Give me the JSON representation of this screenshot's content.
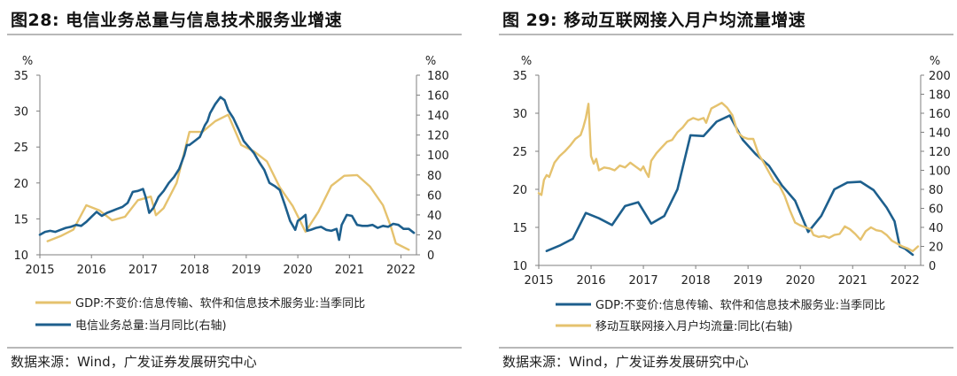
{
  "figures": [
    {
      "title": "图28:  电信业务总量与信息技术服务业增速",
      "source": "数据来源：Wind，广发证券发展研究中心"
    },
    {
      "title": "图 29:  移动互联网接入月户均流量增速",
      "source": "数据来源：Wind，广发证券发展研究中心"
    }
  ],
  "colors": {
    "gold": "#e5c26e",
    "blue": "#1d5f8d",
    "axis": "#7f7f7f"
  },
  "chart_data": [
    {
      "type": "line",
      "left_unit": "%",
      "right_unit": "%",
      "ylim": [
        10,
        35
      ],
      "yticks": [
        10,
        15,
        20,
        25,
        30,
        35
      ],
      "y2lim": [
        0,
        180
      ],
      "y2ticks": [
        0,
        20,
        40,
        60,
        80,
        100,
        120,
        140,
        160,
        180
      ],
      "xlim": [
        2015,
        2022.3
      ],
      "xticks": [
        "2015",
        "2016",
        "2017",
        "2018",
        "2019",
        "2020",
        "2021",
        "2022"
      ],
      "grid": false,
      "legend_position": "bottom",
      "series": [
        {
          "name": "GDP:不变价:信息传输、软件和信息技术服务业:当季同比",
          "axis": "left",
          "color": "gold",
          "points": [
            [
              2015.15,
              11.9
            ],
            [
              2015.4,
              12.6
            ],
            [
              2015.65,
              13.5
            ],
            [
              2015.9,
              16.9
            ],
            [
              2016.15,
              16.2
            ],
            [
              2016.4,
              14.8
            ],
            [
              2016.65,
              15.3
            ],
            [
              2016.9,
              17.6
            ],
            [
              2017.15,
              18.1
            ],
            [
              2017.25,
              15.5
            ],
            [
              2017.4,
              16.5
            ],
            [
              2017.65,
              20.0
            ],
            [
              2017.9,
              27.1
            ],
            [
              2018.15,
              27.1
            ],
            [
              2018.4,
              28.6
            ],
            [
              2018.65,
              29.5
            ],
            [
              2018.9,
              25.3
            ],
            [
              2019.15,
              24.4
            ],
            [
              2019.4,
              23.0
            ],
            [
              2019.65,
              19.4
            ],
            [
              2019.9,
              16.8
            ],
            [
              2020.15,
              13.2
            ],
            [
              2020.4,
              16.0
            ],
            [
              2020.65,
              19.6
            ],
            [
              2020.9,
              21.0
            ],
            [
              2021.15,
              21.1
            ],
            [
              2021.4,
              19.5
            ],
            [
              2021.65,
              16.9
            ],
            [
              2021.8,
              14.0
            ],
            [
              2021.9,
              11.6
            ],
            [
              2022.15,
              10.7
            ]
          ]
        },
        {
          "name": "电信业务总量:当月同比(右轴)",
          "axis": "right",
          "color": "blue",
          "points": [
            [
              2015.0,
              20
            ],
            [
              2015.1,
              23
            ],
            [
              2015.2,
              24
            ],
            [
              2015.3,
              23
            ],
            [
              2015.4,
              25
            ],
            [
              2015.5,
              27
            ],
            [
              2015.6,
              28
            ],
            [
              2015.7,
              30
            ],
            [
              2015.8,
              29
            ],
            [
              2015.9,
              33
            ],
            [
              2016.0,
              38
            ],
            [
              2016.1,
              43
            ],
            [
              2016.2,
              39
            ],
            [
              2016.3,
              42
            ],
            [
              2016.4,
              44
            ],
            [
              2016.5,
              46
            ],
            [
              2016.6,
              48
            ],
            [
              2016.7,
              52
            ],
            [
              2016.8,
              63
            ],
            [
              2016.9,
              64
            ],
            [
              2017.0,
              66
            ],
            [
              2017.05,
              58
            ],
            [
              2017.12,
              42
            ],
            [
              2017.2,
              47
            ],
            [
              2017.3,
              58
            ],
            [
              2017.4,
              64
            ],
            [
              2017.5,
              72
            ],
            [
              2017.6,
              78
            ],
            [
              2017.7,
              86
            ],
            [
              2017.8,
              100
            ],
            [
              2017.85,
              110
            ],
            [
              2017.9,
              110
            ],
            [
              2018.0,
              114
            ],
            [
              2018.1,
              118
            ],
            [
              2018.2,
              130
            ],
            [
              2018.25,
              134
            ],
            [
              2018.3,
              142
            ],
            [
              2018.4,
              151
            ],
            [
              2018.5,
              158
            ],
            [
              2018.58,
              155
            ],
            [
              2018.65,
              145
            ],
            [
              2018.75,
              137
            ],
            [
              2018.85,
              126
            ],
            [
              2018.95,
              114
            ],
            [
              2019.05,
              108
            ],
            [
              2019.15,
              102
            ],
            [
              2019.25,
              93
            ],
            [
              2019.35,
              85
            ],
            [
              2019.45,
              72
            ],
            [
              2019.55,
              69
            ],
            [
              2019.65,
              65
            ],
            [
              2019.75,
              50
            ],
            [
              2019.85,
              34
            ],
            [
              2019.95,
              25
            ],
            [
              2020.0,
              34
            ],
            [
              2020.08,
              37
            ],
            [
              2020.15,
              40
            ],
            [
              2020.18,
              24
            ],
            [
              2020.25,
              25
            ],
            [
              2020.35,
              27
            ],
            [
              2020.45,
              28
            ],
            [
              2020.55,
              25
            ],
            [
              2020.65,
              24
            ],
            [
              2020.75,
              26
            ],
            [
              2020.8,
              15
            ],
            [
              2020.85,
              30
            ],
            [
              2020.95,
              40
            ],
            [
              2021.05,
              39
            ],
            [
              2021.15,
              30
            ],
            [
              2021.25,
              29
            ],
            [
              2021.35,
              29
            ],
            [
              2021.45,
              30
            ],
            [
              2021.55,
              27
            ],
            [
              2021.65,
              29
            ],
            [
              2021.75,
              28
            ],
            [
              2021.85,
              31
            ],
            [
              2021.95,
              30
            ],
            [
              2022.05,
              26
            ],
            [
              2022.15,
              26
            ],
            [
              2022.25,
              22
            ]
          ]
        }
      ]
    },
    {
      "type": "line",
      "left_unit": "%",
      "right_unit": "%",
      "ylim": [
        10,
        35
      ],
      "yticks": [
        10,
        15,
        20,
        25,
        30,
        35
      ],
      "y2lim": [
        0,
        200
      ],
      "y2ticks": [
        0,
        20,
        40,
        60,
        80,
        100,
        120,
        140,
        160,
        180,
        200
      ],
      "xlim": [
        2015,
        2022.3
      ],
      "xticks": [
        "2015",
        "2016",
        "2017",
        "2018",
        "2019",
        "2020",
        "2021",
        "2022"
      ],
      "grid": false,
      "legend_position": "bottom",
      "series": [
        {
          "name": "GDP:不变价:信息传输、软件和信息技术服务业:当季同比",
          "axis": "left",
          "color": "blue",
          "points": [
            [
              2015.15,
              11.9
            ],
            [
              2015.4,
              12.6
            ],
            [
              2015.65,
              13.5
            ],
            [
              2015.9,
              16.9
            ],
            [
              2016.15,
              16.2
            ],
            [
              2016.4,
              15.3
            ],
            [
              2016.65,
              17.8
            ],
            [
              2016.9,
              18.3
            ],
            [
              2017.15,
              15.5
            ],
            [
              2017.4,
              16.5
            ],
            [
              2017.65,
              20.0
            ],
            [
              2017.9,
              27.1
            ],
            [
              2018.15,
              27.0
            ],
            [
              2018.4,
              28.9
            ],
            [
              2018.65,
              29.7
            ],
            [
              2018.9,
              26.5
            ],
            [
              2019.15,
              24.6
            ],
            [
              2019.4,
              23.1
            ],
            [
              2019.65,
              20.5
            ],
            [
              2019.9,
              18.5
            ],
            [
              2020.15,
              14.4
            ],
            [
              2020.4,
              16.5
            ],
            [
              2020.65,
              20.0
            ],
            [
              2020.9,
              20.9
            ],
            [
              2021.15,
              21.0
            ],
            [
              2021.4,
              19.9
            ],
            [
              2021.65,
              17.6
            ],
            [
              2021.8,
              15.8
            ],
            [
              2021.9,
              12.5
            ],
            [
              2022.0,
              12.2
            ],
            [
              2022.15,
              11.4
            ]
          ]
        },
        {
          "name": "移动互联网接入月户均流量:同比(右轴)",
          "axis": "right",
          "color": "gold",
          "points": [
            [
              2015.0,
              76
            ],
            [
              2015.05,
              74
            ],
            [
              2015.1,
              90
            ],
            [
              2015.15,
              95
            ],
            [
              2015.2,
              93
            ],
            [
              2015.3,
              108
            ],
            [
              2015.4,
              115
            ],
            [
              2015.5,
              120
            ],
            [
              2015.6,
              126
            ],
            [
              2015.7,
              133
            ],
            [
              2015.8,
              137
            ],
            [
              2015.85,
              145
            ],
            [
              2015.9,
              155
            ],
            [
              2015.95,
              170
            ],
            [
              2016.0,
              115
            ],
            [
              2016.05,
              107
            ],
            [
              2016.1,
              112
            ],
            [
              2016.15,
              100
            ],
            [
              2016.25,
              103
            ],
            [
              2016.35,
              102
            ],
            [
              2016.45,
              100
            ],
            [
              2016.55,
              105
            ],
            [
              2016.65,
              103
            ],
            [
              2016.75,
              108
            ],
            [
              2016.85,
              104
            ],
            [
              2016.95,
              100
            ],
            [
              2017.0,
              104
            ],
            [
              2017.05,
              98
            ],
            [
              2017.1,
              93
            ],
            [
              2017.15,
              110
            ],
            [
              2017.25,
              118
            ],
            [
              2017.35,
              124
            ],
            [
              2017.45,
              130
            ],
            [
              2017.55,
              132
            ],
            [
              2017.65,
              140
            ],
            [
              2017.75,
              145
            ],
            [
              2017.85,
              152
            ],
            [
              2017.95,
              155
            ],
            [
              2018.05,
              153
            ],
            [
              2018.15,
              155
            ],
            [
              2018.2,
              150
            ],
            [
              2018.25,
              158
            ],
            [
              2018.3,
              165
            ],
            [
              2018.4,
              168
            ],
            [
              2018.5,
              171
            ],
            [
              2018.6,
              166
            ],
            [
              2018.7,
              158
            ],
            [
              2018.8,
              140
            ],
            [
              2018.9,
              135
            ],
            [
              2019.0,
              133
            ],
            [
              2019.1,
              133
            ],
            [
              2019.2,
              117
            ],
            [
              2019.3,
              108
            ],
            [
              2019.4,
              98
            ],
            [
              2019.5,
              88
            ],
            [
              2019.6,
              84
            ],
            [
              2019.7,
              73
            ],
            [
              2019.8,
              58
            ],
            [
              2019.9,
              45
            ],
            [
              2020.0,
              42
            ],
            [
              2020.1,
              40
            ],
            [
              2020.2,
              38
            ],
            [
              2020.25,
              32
            ],
            [
              2020.35,
              30
            ],
            [
              2020.45,
              31
            ],
            [
              2020.55,
              29
            ],
            [
              2020.65,
              32
            ],
            [
              2020.75,
              33
            ],
            [
              2020.85,
              41
            ],
            [
              2020.95,
              38
            ],
            [
              2021.05,
              33
            ],
            [
              2021.15,
              27
            ],
            [
              2021.25,
              36
            ],
            [
              2021.35,
              40
            ],
            [
              2021.45,
              37
            ],
            [
              2021.55,
              36
            ],
            [
              2021.65,
              32
            ],
            [
              2021.75,
              26
            ],
            [
              2021.85,
              23
            ],
            [
              2021.95,
              20
            ],
            [
              2022.05,
              18
            ],
            [
              2022.15,
              15
            ],
            [
              2022.25,
              20
            ]
          ]
        }
      ]
    }
  ]
}
